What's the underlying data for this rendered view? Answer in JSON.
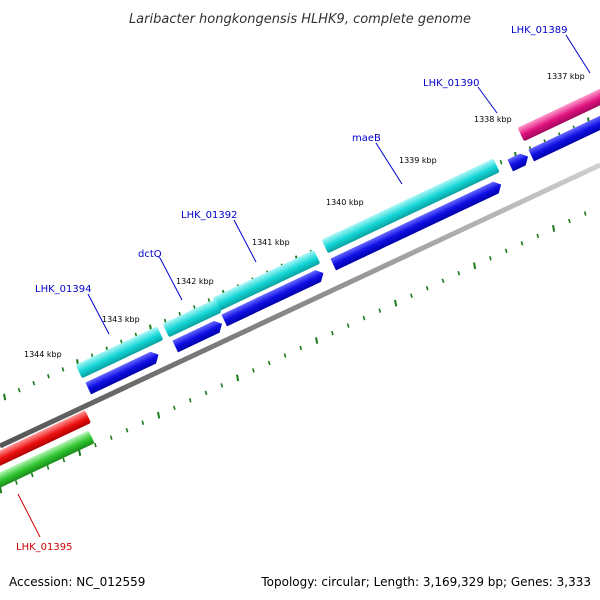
{
  "title": "Laribacter hongkongensis HLHK9, complete genome",
  "footer": {
    "accession": "Accession: NC_012559",
    "summary": "Topology: circular; Length: 3,169,329 bp; Genes: 3,333"
  },
  "kbp_labels": [
    "1337 kbp",
    "1338 kbp",
    "1339 kbp",
    "1340 kbp",
    "1341 kbp",
    "1342 kbp",
    "1343 kbp",
    "1344 kbp"
  ],
  "genes": [
    {
      "name": "LHK_01389",
      "color": "#0000cc"
    },
    {
      "name": "LHK_01390",
      "color": "#0000cc"
    },
    {
      "name": "maeB",
      "color": "#0000cc"
    },
    {
      "name": "LHK_01392",
      "color": "#0000cc"
    },
    {
      "name": "dctQ",
      "color": "#0000cc"
    },
    {
      "name": "LHK_01394",
      "color": "#0000cc"
    },
    {
      "name": "LHK_01395",
      "color": "#cc0000"
    }
  ],
  "colors": {
    "cds_forward": "#1010e6",
    "cog_cyan": "#11d4d4",
    "cog_magenta": "#e0117f",
    "cog_red": "#ee1111",
    "cog_green": "#2ec52e",
    "backbone": "#808080",
    "ticks": "#1a7a1a"
  }
}
